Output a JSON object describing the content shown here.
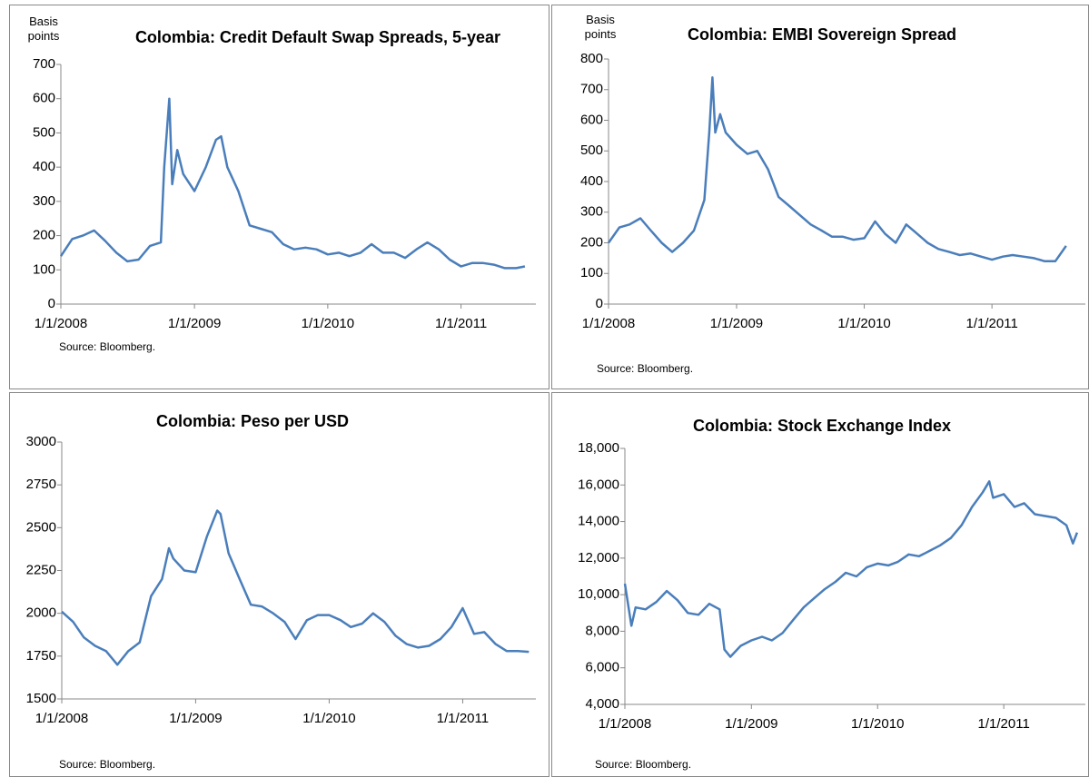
{
  "chart_data": [
    {
      "type": "line",
      "title": "Colombia: Credit Default Swap Spreads, 5-year",
      "y_label": "Basis points",
      "source": "Source: Bloomberg.",
      "color": "#4a7ebb",
      "x": [
        "1/1/2008",
        "2/1/2008",
        "3/1/2008",
        "4/1/2008",
        "5/1/2008",
        "6/1/2008",
        "7/1/2008",
        "8/1/2008",
        "9/1/2008",
        "10/1/2008",
        "10/10/2008",
        "10/24/2008",
        "11/1/2008",
        "11/15/2008",
        "12/1/2008",
        "1/1/2009",
        "2/1/2009",
        "3/1/2009",
        "3/15/2009",
        "4/1/2009",
        "5/1/2009",
        "6/1/2009",
        "7/1/2009",
        "8/1/2009",
        "9/1/2009",
        "10/1/2009",
        "11/1/2009",
        "12/1/2009",
        "1/1/2010",
        "2/1/2010",
        "3/1/2010",
        "4/1/2010",
        "5/1/2010",
        "6/1/2010",
        "7/1/2010",
        "8/1/2010",
        "9/1/2010",
        "10/1/2010",
        "11/1/2010",
        "12/1/2010",
        "1/1/2011",
        "2/1/2011",
        "3/1/2011",
        "4/1/2011",
        "5/1/2011",
        "6/1/2011",
        "6/25/2011"
      ],
      "values": [
        140,
        190,
        200,
        215,
        185,
        150,
        125,
        130,
        170,
        180,
        400,
        600,
        350,
        450,
        380,
        330,
        400,
        480,
        490,
        400,
        330,
        230,
        220,
        210,
        175,
        160,
        165,
        160,
        145,
        150,
        140,
        150,
        175,
        150,
        150,
        135,
        160,
        180,
        160,
        130,
        110,
        120,
        120,
        115,
        105,
        105,
        110
      ],
      "xlim": [
        "1/1/2008",
        "7/25/2011"
      ],
      "xticks": [
        "1/1/2008",
        "1/1/2009",
        "1/1/2010",
        "1/1/2011"
      ],
      "ylim": [
        0,
        700
      ],
      "yticks": [
        0,
        100,
        200,
        300,
        400,
        500,
        600,
        700
      ]
    },
    {
      "type": "line",
      "title": "Colombia:  EMBI Sovereign Spread",
      "y_label": "Basis points",
      "source": "Source: Bloomberg.",
      "color": "#4a7ebb",
      "x": [
        "1/1/2008",
        "2/1/2008",
        "3/1/2008",
        "4/1/2008",
        "5/1/2008",
        "6/1/2008",
        "7/1/2008",
        "8/1/2008",
        "9/1/2008",
        "10/1/2008",
        "10/15/2008",
        "10/24/2008",
        "11/1/2008",
        "11/15/2008",
        "12/1/2008",
        "1/1/2009",
        "2/1/2009",
        "3/1/2009",
        "4/1/2009",
        "5/1/2009",
        "6/1/2009",
        "7/1/2009",
        "8/1/2009",
        "9/1/2009",
        "10/1/2009",
        "11/1/2009",
        "12/1/2009",
        "1/1/2010",
        "2/1/2010",
        "3/1/2010",
        "4/1/2010",
        "5/1/2010",
        "6/1/2010",
        "7/1/2010",
        "8/1/2010",
        "9/1/2010",
        "10/1/2010",
        "11/1/2010",
        "12/1/2010",
        "1/1/2011",
        "2/1/2011",
        "3/1/2011",
        "4/1/2011",
        "5/1/2011",
        "6/1/2011",
        "7/1/2011",
        "8/1/2011"
      ],
      "values": [
        200,
        250,
        260,
        280,
        240,
        200,
        170,
        200,
        240,
        340,
        560,
        740,
        560,
        620,
        560,
        520,
        490,
        500,
        440,
        350,
        320,
        290,
        260,
        240,
        220,
        220,
        210,
        215,
        270,
        230,
        200,
        260,
        230,
        200,
        180,
        170,
        160,
        165,
        155,
        145,
        155,
        160,
        155,
        150,
        140,
        140,
        190
      ],
      "xlim": [
        "1/1/2008",
        "9/25/2011"
      ],
      "xticks": [
        "1/1/2008",
        "1/1/2009",
        "1/1/2010",
        "1/1/2011"
      ],
      "ylim": [
        0,
        800
      ],
      "yticks": [
        0,
        100,
        200,
        300,
        400,
        500,
        600,
        700,
        800
      ]
    },
    {
      "type": "line",
      "title": "Colombia: Peso per USD",
      "source": "Source: Bloomberg.",
      "color": "#4a7ebb",
      "x": [
        "1/1/2008",
        "2/1/2008",
        "3/1/2008",
        "4/1/2008",
        "5/1/2008",
        "6/1/2008",
        "7/1/2008",
        "8/1/2008",
        "9/1/2008",
        "10/1/2008",
        "10/20/2008",
        "11/1/2008",
        "12/1/2008",
        "1/1/2009",
        "2/1/2009",
        "3/1/2009",
        "3/10/2009",
        "4/1/2009",
        "5/1/2009",
        "6/1/2009",
        "7/1/2009",
        "8/1/2009",
        "9/1/2009",
        "10/1/2009",
        "11/1/2009",
        "12/1/2009",
        "1/1/2010",
        "2/1/2010",
        "3/1/2010",
        "4/1/2010",
        "5/1/2010",
        "6/1/2010",
        "7/1/2010",
        "8/1/2010",
        "9/1/2010",
        "10/1/2010",
        "11/1/2010",
        "12/1/2010",
        "1/1/2011",
        "2/1/2011",
        "3/1/2011",
        "4/1/2011",
        "5/1/2011",
        "6/1/2011",
        "7/1/2011"
      ],
      "values": [
        2010,
        1950,
        1860,
        1810,
        1780,
        1700,
        1780,
        1830,
        2100,
        2200,
        2380,
        2320,
        2250,
        2240,
        2450,
        2600,
        2580,
        2350,
        2200,
        2050,
        2040,
        2000,
        1950,
        1850,
        1960,
        1990,
        1990,
        1960,
        1920,
        1940,
        2000,
        1950,
        1870,
        1820,
        1800,
        1810,
        1850,
        1920,
        2030,
        1880,
        1890,
        1820,
        1780,
        1780,
        1775
      ],
      "xlim": [
        "1/1/2008",
        "7/20/2011"
      ],
      "xticks": [
        "1/1/2008",
        "1/1/2009",
        "1/1/2010",
        "1/1/2011"
      ],
      "ylim": [
        1500,
        3000
      ],
      "yticks": [
        1500,
        1750,
        2000,
        2250,
        2500,
        2750,
        3000
      ]
    },
    {
      "type": "line",
      "title": "Colombia:  Stock Exchange Index",
      "source": "Source: Bloomberg.",
      "color": "#4a7ebb",
      "x": [
        "1/1/2008",
        "1/20/2008",
        "2/1/2008",
        "3/1/2008",
        "4/1/2008",
        "5/1/2008",
        "6/1/2008",
        "7/1/2008",
        "8/1/2008",
        "9/1/2008",
        "10/1/2008",
        "10/15/2008",
        "11/1/2008",
        "12/1/2008",
        "1/1/2009",
        "2/1/2009",
        "3/1/2009",
        "4/1/2009",
        "5/1/2009",
        "6/1/2009",
        "7/1/2009",
        "8/1/2009",
        "9/1/2009",
        "10/1/2009",
        "11/1/2009",
        "12/1/2009",
        "1/1/2010",
        "2/1/2010",
        "3/1/2010",
        "4/1/2010",
        "5/1/2010",
        "6/1/2010",
        "7/1/2010",
        "8/1/2010",
        "9/1/2010",
        "10/1/2010",
        "11/1/2010",
        "11/20/2010",
        "12/1/2010",
        "1/1/2011",
        "2/1/2011",
        "3/1/2011",
        "4/1/2011",
        "5/1/2011",
        "6/1/2011",
        "7/1/2011",
        "7/20/2011",
        "8/1/2011"
      ],
      "values": [
        10600,
        8300,
        9300,
        9200,
        9600,
        10200,
        9700,
        9000,
        8900,
        9500,
        9200,
        7000,
        6600,
        7200,
        7500,
        7700,
        7500,
        7900,
        8600,
        9300,
        9800,
        10300,
        10700,
        11200,
        11000,
        11500,
        11700,
        11600,
        11800,
        12200,
        12100,
        12400,
        12700,
        13100,
        13800,
        14800,
        15600,
        16200,
        15300,
        15500,
        14800,
        15000,
        14400,
        14300,
        14200,
        13800,
        12800,
        13400
      ],
      "xlim": [
        "1/1/2008",
        "8/25/2011"
      ],
      "xticks": [
        "1/1/2008",
        "1/1/2009",
        "1/1/2010",
        "1/1/2011"
      ],
      "ylim": [
        4000,
        18000
      ],
      "yticks": [
        {
          "value": 4000,
          "label": "4,000"
        },
        {
          "value": 6000,
          "label": "6,000"
        },
        {
          "value": 8000,
          "label": "8,000"
        },
        {
          "value": 10000,
          "label": "10,000"
        },
        {
          "value": 12000,
          "label": "12,000"
        },
        {
          "value": 14000,
          "label": "14,000"
        },
        {
          "value": 16000,
          "label": "16,000"
        },
        {
          "value": 18000,
          "label": "18,000"
        }
      ]
    }
  ]
}
